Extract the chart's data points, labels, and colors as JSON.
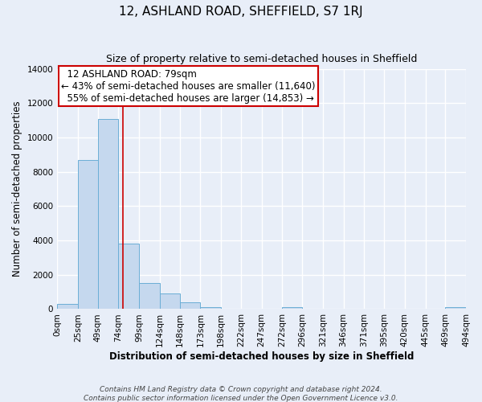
{
  "title": "12, ASHLAND ROAD, SHEFFIELD, S7 1RJ",
  "subtitle": "Size of property relative to semi-detached houses in Sheffield",
  "xlabel": "Distribution of semi-detached houses by size in Sheffield",
  "ylabel": "Number of semi-detached properties",
  "footnote1": "Contains HM Land Registry data © Crown copyright and database right 2024.",
  "footnote2": "Contains public sector information licensed under the Open Government Licence v3.0.",
  "bin_edges": [
    0,
    25,
    49,
    74,
    99,
    124,
    148,
    173,
    198,
    222,
    247,
    272,
    296,
    321,
    346,
    371,
    395,
    420,
    445,
    469,
    494
  ],
  "bin_labels": [
    "0sqm",
    "25sqm",
    "49sqm",
    "74sqm",
    "99sqm",
    "124sqm",
    "148sqm",
    "173sqm",
    "198sqm",
    "222sqm",
    "247sqm",
    "272sqm",
    "296sqm",
    "321sqm",
    "346sqm",
    "371sqm",
    "395sqm",
    "420sqm",
    "445sqm",
    "469sqm",
    "494sqm"
  ],
  "bar_heights": [
    300,
    8700,
    11100,
    3800,
    1500,
    900,
    400,
    130,
    0,
    0,
    0,
    100,
    0,
    0,
    0,
    0,
    0,
    0,
    0,
    100
  ],
  "bar_color": "#c5d8ee",
  "bar_edge_color": "#6baed6",
  "property_sqm": 79,
  "property_label": "12 ASHLAND ROAD: 79sqm",
  "pct_smaller": 43,
  "n_smaller": 11640,
  "pct_larger": 55,
  "n_larger": 14853,
  "vline_color": "#cc0000",
  "annotation_box_color": "#cc0000",
  "ylim": [
    0,
    14000
  ],
  "yticks": [
    0,
    2000,
    4000,
    6000,
    8000,
    10000,
    12000,
    14000
  ],
  "bg_color": "#e8eef8",
  "grid_color": "white",
  "title_fontsize": 11,
  "subtitle_fontsize": 9,
  "axis_label_fontsize": 8.5,
  "tick_fontsize": 7.5,
  "annotation_fontsize": 8.5
}
